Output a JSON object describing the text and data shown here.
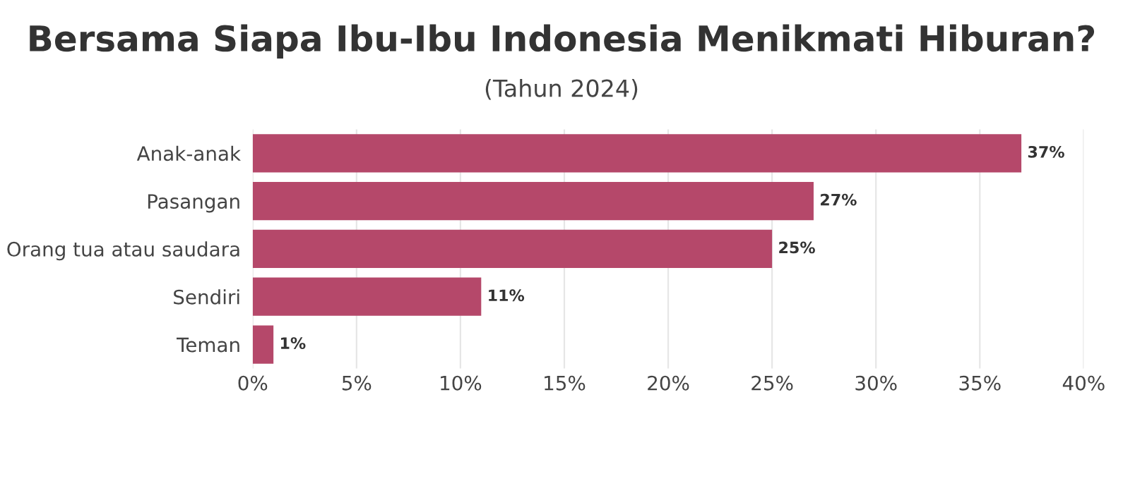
{
  "chart_data": {
    "type": "bar",
    "orientation": "horizontal",
    "title": "Bersama Siapa Ibu-Ibu Indonesia Menikmati Hiburan?",
    "subtitle": "(Tahun 2024)",
    "categories": [
      "Anak-anak",
      "Pasangan",
      "Orang tua atau saudara",
      "Sendiri",
      "Teman"
    ],
    "values": [
      37,
      27,
      25,
      11,
      1
    ],
    "color": "#b5486a",
    "value_labels": [
      "37%",
      "27%",
      "25%",
      "11%",
      "1%"
    ],
    "xlim": [
      0,
      40
    ],
    "xticks": [
      {
        "value": 0,
        "label": "0%"
      },
      {
        "value": 5,
        "label": "5%"
      },
      {
        "value": 10,
        "label": "10%"
      },
      {
        "value": 15,
        "label": "15%"
      },
      {
        "value": 20,
        "label": "20%"
      },
      {
        "value": 25,
        "label": "25%"
      },
      {
        "value": 30,
        "label": "30%"
      },
      {
        "value": 35,
        "label": "35%"
      },
      {
        "value": 40,
        "label": "40%"
      }
    ],
    "grid": "x",
    "legend": false
  }
}
